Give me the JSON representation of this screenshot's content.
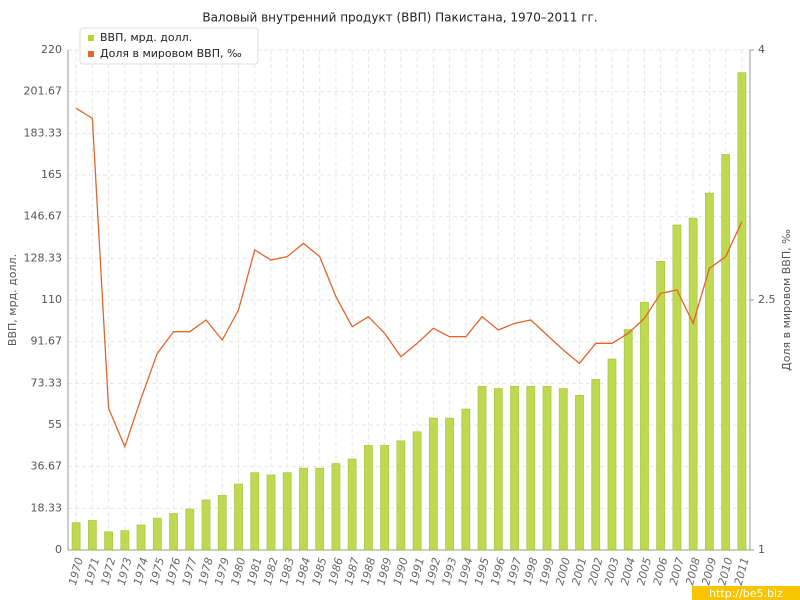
{
  "chart_data": {
    "type": "bar_line",
    "title": "Валовый внутренний продукт (ВВП) Пакистана, 1970–2011 гг.",
    "ylabel": "ВВП, мрд. долл.",
    "y2label": "Доля в мировом ВВП, ‰",
    "watermark": "http://be5.biz",
    "legend": "top-left",
    "grid": true,
    "categories": [
      "1970",
      "1971",
      "1972",
      "1973",
      "1974",
      "1975",
      "1976",
      "1977",
      "1978",
      "1979",
      "1980",
      "1981",
      "1982",
      "1983",
      "1984",
      "1985",
      "1986",
      "1987",
      "1988",
      "1989",
      "1990",
      "1991",
      "1992",
      "1993",
      "1994",
      "1995",
      "1996",
      "1997",
      "1998",
      "1999",
      "2000",
      "2001",
      "2002",
      "2003",
      "2004",
      "2005",
      "2006",
      "2007",
      "2008",
      "2009",
      "2010",
      "2011"
    ],
    "ylim": [
      0,
      220
    ],
    "yticks": [
      0,
      18.33,
      36.67,
      55,
      73.33,
      91.67,
      110,
      128.33,
      146.67,
      165,
      183.33,
      201.67,
      220
    ],
    "y2lim": [
      1,
      4
    ],
    "y2ticks": [
      1,
      2.5,
      4
    ],
    "series": [
      {
        "name": "ВВП, мрд. долл.",
        "color": "#b5d334",
        "kind": "bar",
        "values": [
          12,
          13,
          8,
          8.5,
          11,
          14,
          16,
          18,
          22,
          24,
          29,
          34,
          33,
          34,
          36,
          36,
          38,
          40,
          46,
          46,
          48,
          52,
          58,
          58,
          62,
          72,
          71,
          72,
          72,
          72,
          71,
          68,
          75,
          84,
          97,
          109,
          127,
          143,
          146,
          157,
          174,
          210
        ]
      },
      {
        "name": "Доля в мировом ВВП, ‰",
        "color": "#e0662c",
        "kind": "line",
        "axis": "y2",
        "values": [
          3.65,
          3.59,
          1.85,
          1.62,
          1.91,
          2.18,
          2.31,
          2.31,
          2.38,
          2.26,
          2.44,
          2.8,
          2.74,
          2.76,
          2.84,
          2.76,
          2.52,
          2.34,
          2.4,
          2.3,
          2.16,
          2.24,
          2.33,
          2.28,
          2.28,
          2.4,
          2.32,
          2.36,
          2.38,
          2.29,
          2.2,
          2.12,
          2.24,
          2.24,
          2.3,
          2.39,
          2.54,
          2.56,
          2.36,
          2.69,
          2.76,
          2.97
        ]
      }
    ]
  }
}
